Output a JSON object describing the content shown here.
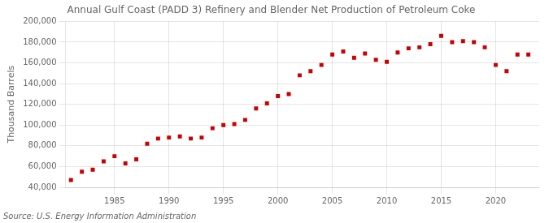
{
  "chart_data": {
    "type": "scatter",
    "title": "Annual Gulf Coast (PADD 3) Refinery and Blender Net Production of Petroleum Coke",
    "y_label": "Thousand Barrels",
    "annotations": [
      "Source: U.S. Energy Information Administration"
    ],
    "x": [
      1981,
      1982,
      1983,
      1984,
      1985,
      1986,
      1987,
      1988,
      1989,
      1990,
      1991,
      1992,
      1993,
      1994,
      1995,
      1996,
      1997,
      1998,
      1999,
      2000,
      2001,
      2002,
      2003,
      2004,
      2005,
      2006,
      2007,
      2008,
      2009,
      2010,
      2011,
      2012,
      2013,
      2014,
      2015,
      2016,
      2017,
      2018,
      2019,
      2020,
      2021,
      2022,
      2023
    ],
    "values": [
      47000,
      55000,
      57000,
      65000,
      70000,
      63000,
      67000,
      82000,
      87000,
      88000,
      89000,
      87000,
      88000,
      97000,
      100000,
      101000,
      105000,
      116000,
      121000,
      128000,
      130000,
      148000,
      152000,
      158000,
      168000,
      171000,
      165000,
      169000,
      163000,
      161000,
      170000,
      174000,
      175000,
      178000,
      186000,
      180000,
      181000,
      180000,
      175000,
      158000,
      152000,
      168000,
      168000
    ],
    "color": "#cc0000",
    "marker": "square",
    "xlim": [
      1980.5,
      2024
    ],
    "xticks": [
      1985,
      1990,
      1995,
      2000,
      2005,
      2010,
      2015,
      2020
    ],
    "ylim": [
      40000,
      200000
    ],
    "yticks": [
      {
        "value": 40000,
        "label": "40,000"
      },
      {
        "value": 60000,
        "label": "60,000"
      },
      {
        "value": 80000,
        "label": "80,000"
      },
      {
        "value": 100000,
        "label": "100,000"
      },
      {
        "value": 120000,
        "label": "120,000"
      },
      {
        "value": 140000,
        "label": "140,000"
      },
      {
        "value": 160000,
        "label": "160,000"
      },
      {
        "value": 180000,
        "label": "180,000"
      },
      {
        "value": 200000,
        "label": "200,000"
      }
    ],
    "grid": true
  }
}
